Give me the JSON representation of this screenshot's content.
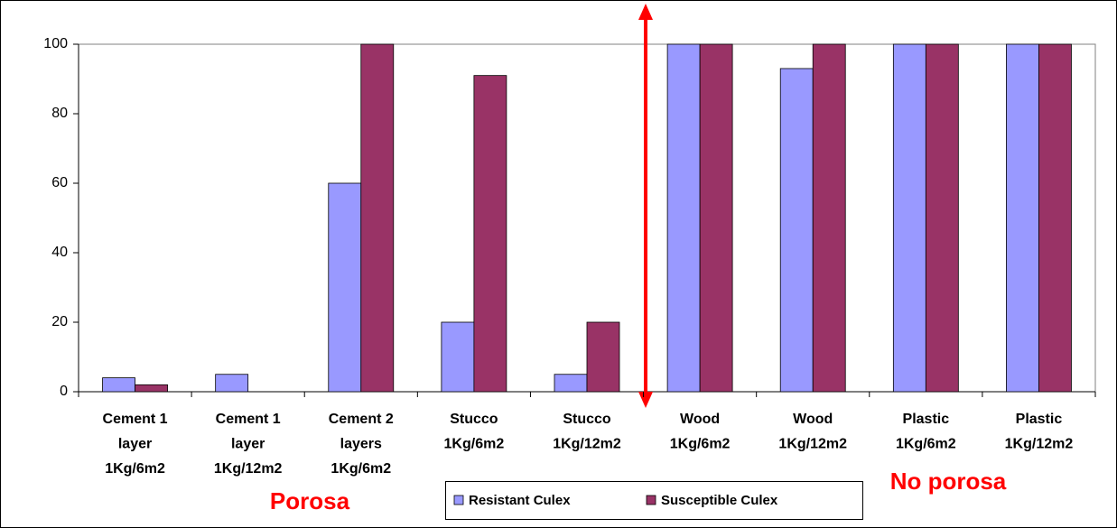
{
  "chart_data": {
    "type": "bar",
    "categories": [
      [
        "Cement 1",
        "layer",
        "1Kg/6m2"
      ],
      [
        "Cement 1",
        "layer",
        "1Kg/12m2"
      ],
      [
        "Cement 2",
        "layers",
        "1Kg/6m2"
      ],
      [
        "Stucco",
        "1Kg/6m2"
      ],
      [
        "Stucco",
        "1Kg/12m2"
      ],
      [
        "Wood",
        "1Kg/6m2"
      ],
      [
        "Wood",
        "1Kg/12m2"
      ],
      [
        "Plastic",
        "1Kg/6m2"
      ],
      [
        "Plastic",
        "1Kg/12m2"
      ]
    ],
    "series": [
      {
        "name": "Resistant Culex",
        "color": "#9999ff",
        "values": [
          4,
          5,
          60,
          20,
          5,
          100,
          93,
          100,
          100
        ]
      },
      {
        "name": "Susceptible Culex",
        "color": "#993366",
        "values": [
          2,
          0,
          100,
          91,
          20,
          100,
          100,
          100,
          100
        ]
      }
    ],
    "ylim": [
      0,
      100
    ],
    "yticks": [
      0,
      20,
      40,
      60,
      80,
      100
    ],
    "annotations": [
      "Porosa",
      "No porosa"
    ]
  }
}
